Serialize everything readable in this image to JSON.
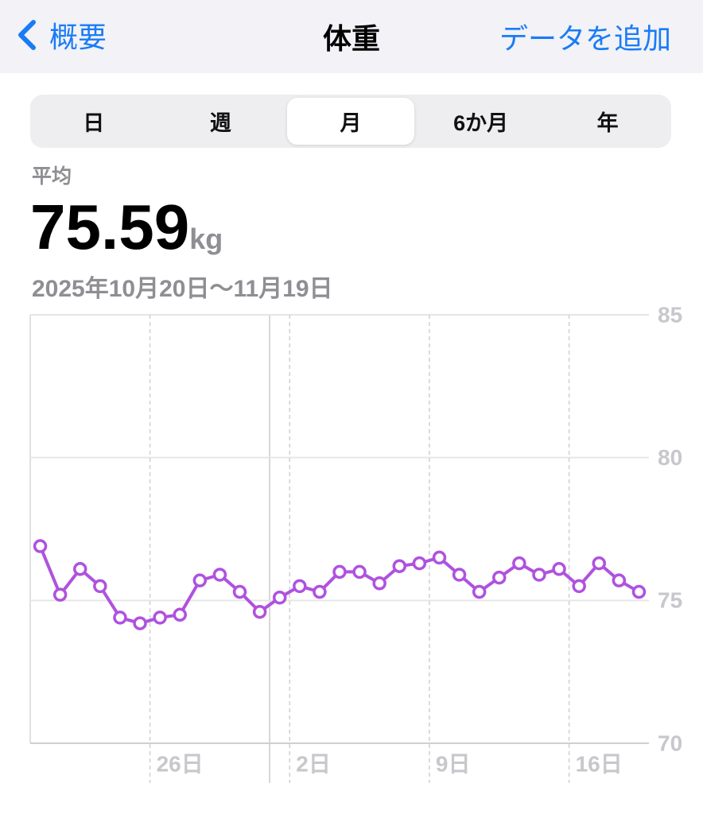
{
  "nav": {
    "back": "概要",
    "title": "体重",
    "action": "データを追加"
  },
  "segments": [
    "日",
    "週",
    "月",
    "6か月",
    "年"
  ],
  "summary": {
    "label": "平均",
    "value": "75.59",
    "unit": "kg",
    "range": "2025年10月20日〜11月19日"
  },
  "chart_data": {
    "type": "line",
    "color": "#af52de",
    "categories": [
      null,
      null,
      null,
      null,
      null,
      null,
      "26日",
      null,
      null,
      null,
      null,
      null,
      null,
      "2日",
      null,
      null,
      null,
      null,
      null,
      null,
      "9日",
      null,
      null,
      null,
      null,
      null,
      null,
      "16日",
      null,
      null,
      null
    ],
    "values": [
      76.9,
      75.2,
      76.1,
      75.5,
      74.4,
      74.2,
      74.4,
      74.5,
      75.7,
      75.9,
      75.3,
      74.6,
      75.1,
      75.5,
      75.3,
      76.0,
      76.0,
      75.6,
      76.2,
      76.3,
      76.5,
      75.9,
      75.3,
      75.8,
      76.3,
      75.9,
      76.1,
      75.5,
      76.3,
      75.7,
      75.3
    ],
    "ylim": [
      70,
      85
    ],
    "yticks": [
      70,
      75,
      80,
      85
    ],
    "grid": true
  }
}
